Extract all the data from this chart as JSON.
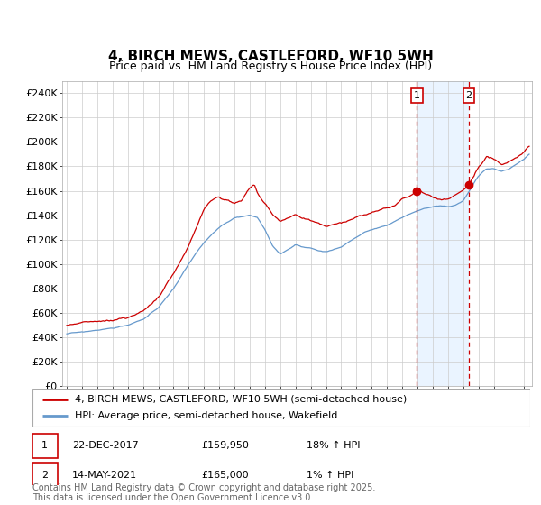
{
  "title": "4, BIRCH MEWS, CASTLEFORD, WF10 5WH",
  "subtitle": "Price paid vs. HM Land Registry's House Price Index (HPI)",
  "ylim": [
    0,
    250000
  ],
  "xlim_start": 1994.7,
  "xlim_end": 2025.5,
  "sale1_date": "22-DEC-2017",
  "sale1_price": 159950,
  "sale1_price_str": "£159,950",
  "sale1_hpi": "18% ↑ HPI",
  "sale1_x": 2017.97,
  "sale1_y": 159950,
  "sale2_date": "14-MAY-2021",
  "sale2_price": 165000,
  "sale2_price_str": "£165,000",
  "sale2_hpi": "1% ↑ HPI",
  "sale2_x": 2021.37,
  "sale2_y": 165000,
  "legend_label1": "4, BIRCH MEWS, CASTLEFORD, WF10 5WH (semi-detached house)",
  "legend_label2": "HPI: Average price, semi-detached house, Wakefield",
  "footer": "Contains HM Land Registry data © Crown copyright and database right 2025.\nThis data is licensed under the Open Government Licence v3.0.",
  "line1_color": "#cc0000",
  "line2_color": "#6699cc",
  "bg_highlight_color": "#ddeeff",
  "vline_color": "#cc0000",
  "marker_color": "#cc0000",
  "grid_color": "#cccccc",
  "title_fontsize": 11,
  "subtitle_fontsize": 9,
  "tick_fontsize": 8,
  "legend_fontsize": 8,
  "footer_fontsize": 7,
  "hpi_anchors_t": [
    1995.0,
    1996.0,
    1997.0,
    1998.0,
    1999.0,
    2000.0,
    2001.0,
    2002.0,
    2003.0,
    2004.0,
    2005.0,
    2006.0,
    2007.0,
    2007.5,
    2008.0,
    2008.5,
    2009.0,
    2009.5,
    2010.0,
    2010.5,
    2011.0,
    2011.5,
    2012.0,
    2012.5,
    2013.0,
    2013.5,
    2014.0,
    2014.5,
    2015.0,
    2015.5,
    2016.0,
    2016.5,
    2017.0,
    2017.5,
    2018.0,
    2018.5,
    2019.0,
    2019.5,
    2020.0,
    2020.5,
    2021.0,
    2021.5,
    2022.0,
    2022.5,
    2023.0,
    2023.5,
    2024.0,
    2024.5,
    2025.0,
    2025.3
  ],
  "hpi_anchors_v": [
    43000,
    44500,
    46000,
    47500,
    50000,
    55000,
    64000,
    80000,
    100000,
    118000,
    130000,
    138000,
    140000,
    138000,
    128000,
    115000,
    108000,
    112000,
    116000,
    114000,
    113000,
    111000,
    110000,
    112000,
    114000,
    118000,
    122000,
    126000,
    128000,
    130000,
    132000,
    135000,
    138000,
    141000,
    144000,
    146000,
    147000,
    148000,
    147000,
    148000,
    152000,
    162000,
    172000,
    178000,
    178000,
    176000,
    178000,
    182000,
    186000,
    190000
  ],
  "prop_anchors_t": [
    1995.0,
    1996.0,
    1997.0,
    1998.0,
    1999.0,
    2000.0,
    2001.0,
    2002.0,
    2003.0,
    2003.5,
    2004.0,
    2004.5,
    2005.0,
    2005.5,
    2006.0,
    2006.5,
    2007.0,
    2007.3,
    2007.5,
    2008.0,
    2008.5,
    2009.0,
    2009.5,
    2010.0,
    2010.5,
    2011.0,
    2011.5,
    2012.0,
    2012.5,
    2013.0,
    2013.5,
    2014.0,
    2014.5,
    2015.0,
    2015.5,
    2016.0,
    2016.5,
    2017.0,
    2017.5,
    2017.97,
    2018.0,
    2018.5,
    2019.0,
    2019.5,
    2020.0,
    2020.5,
    2021.0,
    2021.37,
    2021.5,
    2022.0,
    2022.5,
    2023.0,
    2023.5,
    2024.0,
    2024.5,
    2025.0,
    2025.3
  ],
  "prop_anchors_v": [
    50000,
    52000,
    53000,
    54000,
    56000,
    62000,
    72000,
    92000,
    115000,
    130000,
    145000,
    152000,
    155000,
    152000,
    150000,
    153000,
    162000,
    165000,
    158000,
    150000,
    140000,
    135000,
    137000,
    140000,
    138000,
    136000,
    133000,
    131000,
    132000,
    134000,
    136000,
    138000,
    140000,
    142000,
    144000,
    146000,
    148000,
    152000,
    156000,
    159950,
    160500,
    158000,
    155000,
    153000,
    154000,
    156000,
    160000,
    165000,
    168000,
    178000,
    188000,
    186000,
    182000,
    184000,
    188000,
    192000,
    196000
  ]
}
